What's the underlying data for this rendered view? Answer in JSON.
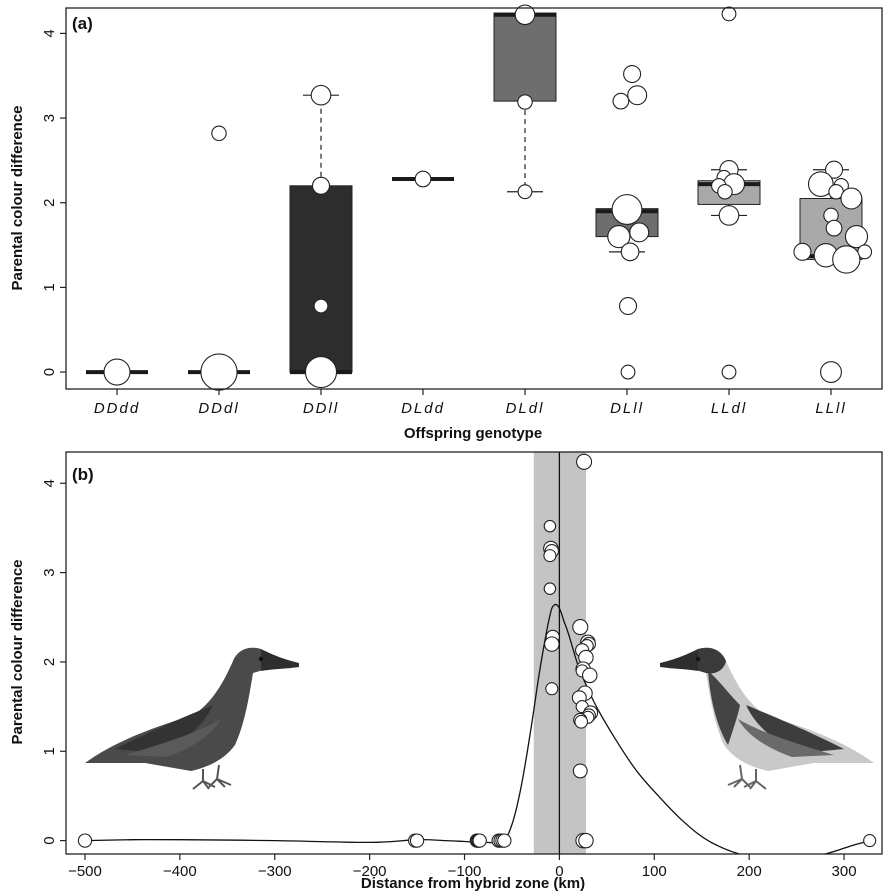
{
  "chart_data": [
    {
      "panel": "(a)",
      "type": "box",
      "xlabel": "Offspring genotype",
      "ylabel": "Parental colour difference",
      "ylim": [
        -0.2,
        4.3
      ],
      "yticks": [
        "0",
        "1",
        "2",
        "3",
        "4"
      ],
      "categories": [
        "DDdd",
        "DDdl",
        "DDll",
        "DLdd",
        "DLdl",
        "DLll",
        "LLdl",
        "LLll"
      ],
      "box_colors": [
        "#2d2d2d",
        "#2d2d2d",
        "#2d2d2d",
        "#2d2d2d",
        "#6e6e6e",
        "#6e6e6e",
        "#a9a9a9",
        "#a9a9a9"
      ],
      "boxes": [
        {
          "q1": 0,
          "median": 0,
          "q3": 0,
          "wlo": 0,
          "whi": 0
        },
        {
          "q1": 0,
          "median": 0,
          "q3": 0,
          "wlo": 0,
          "whi": 0
        },
        {
          "q1": 0,
          "median": 0,
          "q3": 2.2,
          "wlo": 0,
          "whi": 3.27
        },
        {
          "q1": 2.28,
          "median": 2.28,
          "q3": 2.28,
          "wlo": 2.28,
          "whi": 2.28
        },
        {
          "q1": 3.2,
          "median": 4.22,
          "q3": 4.24,
          "wlo": 2.13,
          "whi": 4.24
        },
        {
          "q1": 1.6,
          "median": 1.9,
          "q3": 1.93,
          "wlo": 1.42,
          "whi": 1.93
        },
        {
          "q1": 1.98,
          "median": 2.22,
          "q3": 2.26,
          "wlo": 1.85,
          "whi": 2.39
        },
        {
          "q1": 1.33,
          "median": 1.37,
          "q3": 2.05,
          "wlo": 1.33,
          "whi": 2.39
        }
      ],
      "points": [
        [
          {
            "y": 0,
            "s": 1.4
          }
        ],
        [
          {
            "y": 2.82,
            "s": 0.5
          },
          {
            "y": 0,
            "s": 2.2
          }
        ],
        [
          {
            "y": 3.27,
            "s": 0.9
          },
          {
            "y": 2.2,
            "s": 0.7
          },
          {
            "y": 0.78,
            "s": 0.45
          },
          {
            "y": 0,
            "s": 1.8
          }
        ],
        [
          {
            "y": 2.28,
            "s": 0.6
          }
        ],
        [
          {
            "y": 4.22,
            "s": 0.9
          },
          {
            "y": 3.19,
            "s": 0.5
          },
          {
            "y": 2.13,
            "s": 0.45
          }
        ],
        [
          {
            "y": 3.52,
            "s": 0.7,
            "dx": 0.05
          },
          {
            "y": 3.27,
            "s": 0.85,
            "dx": 0.1
          },
          {
            "y": 3.2,
            "s": 0.6,
            "dx": -0.06
          },
          {
            "y": 1.92,
            "s": 1.7
          },
          {
            "y": 1.65,
            "s": 0.85,
            "dx": 0.12
          },
          {
            "y": 1.6,
            "s": 1.1,
            "dx": -0.08
          },
          {
            "y": 1.42,
            "s": 0.75,
            "dx": 0.03
          },
          {
            "y": 0.78,
            "s": 0.7,
            "dx": 0.01
          },
          {
            "y": 0,
            "s": 0.45,
            "dx": 0.01
          }
        ],
        [
          {
            "y": 4.23,
            "s": 0.45
          },
          {
            "y": 2.39,
            "s": 0.8
          },
          {
            "y": 2.3,
            "s": 0.45,
            "dx": -0.05
          },
          {
            "y": 2.22,
            "s": 1.0,
            "dx": 0.05
          },
          {
            "y": 2.2,
            "s": 0.5,
            "dx": -0.1
          },
          {
            "y": 2.13,
            "s": 0.5,
            "dx": -0.04
          },
          {
            "y": 1.85,
            "s": 0.9
          },
          {
            "y": 0,
            "s": 0.45
          }
        ],
        [
          {
            "y": 2.39,
            "s": 0.7,
            "dx": 0.03
          },
          {
            "y": 2.22,
            "s": 1.3,
            "dx": -0.1
          },
          {
            "y": 2.2,
            "s": 0.5,
            "dx": 0.1
          },
          {
            "y": 2.13,
            "s": 0.5,
            "dx": 0.05
          },
          {
            "y": 2.05,
            "s": 1.0,
            "dx": 0.2
          },
          {
            "y": 1.85,
            "s": 0.5
          },
          {
            "y": 1.7,
            "s": 0.6,
            "dx": 0.03
          },
          {
            "y": 1.6,
            "s": 1.1,
            "dx": 0.25
          },
          {
            "y": 1.42,
            "s": 0.7,
            "dx": -0.28
          },
          {
            "y": 1.42,
            "s": 0.45,
            "dx": 0.33
          },
          {
            "y": 1.38,
            "s": 1.2,
            "dx": -0.05
          },
          {
            "y": 1.33,
            "s": 1.5,
            "dx": 0.15
          },
          {
            "y": 0,
            "s": 1.0
          }
        ]
      ]
    },
    {
      "panel": "(b)",
      "type": "scatter",
      "xlabel": "Distance from hybrid zone (km)",
      "ylabel": "Parental colour difference",
      "xlim": [
        -520,
        340
      ],
      "ylim": [
        -0.15,
        4.35
      ],
      "xticks": [
        "−500",
        "−400",
        "−300",
        "−200",
        "−100",
        "0",
        "100",
        "200",
        "300"
      ],
      "yticks": [
        "0",
        "1",
        "2",
        "3",
        "4"
      ],
      "hybrid_zone_band": [
        -27,
        28
      ],
      "points": [
        {
          "x": -500,
          "y": 0,
          "s": 0.6
        },
        {
          "x": -152,
          "y": 0,
          "s": 0.6
        },
        {
          "x": -150,
          "y": 0,
          "s": 0.6
        },
        {
          "x": -87,
          "y": 0,
          "s": 0.6
        },
        {
          "x": -86,
          "y": 0,
          "s": 0.6
        },
        {
          "x": -85,
          "y": 0,
          "s": 0.6
        },
        {
          "x": -84,
          "y": 0,
          "s": 0.6
        },
        {
          "x": -64,
          "y": 0,
          "s": 0.6
        },
        {
          "x": -62,
          "y": 0,
          "s": 0.6
        },
        {
          "x": -60,
          "y": 0,
          "s": 0.6
        },
        {
          "x": -58,
          "y": 0,
          "s": 0.6
        },
        {
          "x": -10,
          "y": 3.52,
          "s": 0.45
        },
        {
          "x": -9,
          "y": 3.27,
          "s": 0.7
        },
        {
          "x": -8,
          "y": 3.24,
          "s": 0.6
        },
        {
          "x": -10,
          "y": 3.19,
          "s": 0.5
        },
        {
          "x": -10,
          "y": 2.82,
          "s": 0.45
        },
        {
          "x": -7,
          "y": 2.28,
          "s": 0.6
        },
        {
          "x": -8,
          "y": 2.2,
          "s": 0.7
        },
        {
          "x": -8,
          "y": 1.7,
          "s": 0.5
        },
        {
          "x": 26,
          "y": 4.24,
          "s": 0.75
        },
        {
          "x": 22,
          "y": 2.39,
          "s": 0.75
        },
        {
          "x": 30,
          "y": 2.22,
          "s": 0.7
        },
        {
          "x": 31,
          "y": 2.2,
          "s": 0.6
        },
        {
          "x": 29,
          "y": 2.18,
          "s": 0.55
        },
        {
          "x": 24,
          "y": 2.13,
          "s": 0.6
        },
        {
          "x": 28,
          "y": 2.05,
          "s": 0.7
        },
        {
          "x": 25,
          "y": 1.92,
          "s": 0.7
        },
        {
          "x": 24,
          "y": 1.9,
          "s": 0.5
        },
        {
          "x": 32,
          "y": 1.85,
          "s": 0.7
        },
        {
          "x": 27,
          "y": 1.65,
          "s": 0.7
        },
        {
          "x": 21,
          "y": 1.6,
          "s": 0.65
        },
        {
          "x": 24,
          "y": 1.5,
          "s": 0.5
        },
        {
          "x": 33,
          "y": 1.43,
          "s": 0.65
        },
        {
          "x": 31,
          "y": 1.4,
          "s": 0.6
        },
        {
          "x": 30,
          "y": 1.38,
          "s": 0.5
        },
        {
          "x": 22,
          "y": 1.35,
          "s": 0.6
        },
        {
          "x": 23,
          "y": 1.33,
          "s": 0.55
        },
        {
          "x": 22,
          "y": 0.78,
          "s": 0.65
        },
        {
          "x": 25,
          "y": 0,
          "s": 0.7
        },
        {
          "x": 28,
          "y": 0,
          "s": 0.7
        },
        {
          "x": 327,
          "y": 0,
          "s": 0.5
        }
      ],
      "curve": {
        "x": [
          -500,
          -450,
          -400,
          -300,
          -200,
          -150,
          -120,
          -100,
          -80,
          -60,
          -50,
          -40,
          -30,
          -20,
          -10,
          -5,
          0,
          5,
          10,
          20,
          30,
          40,
          60,
          80,
          100,
          130,
          160,
          200,
          240,
          280,
          310,
          328
        ],
        "y": [
          0,
          0.01,
          0.01,
          0.0,
          -0.02,
          0.01,
          0.0,
          -0.01,
          -0.02,
          0.0,
          0.18,
          0.62,
          1.25,
          1.95,
          2.52,
          2.64,
          2.6,
          2.45,
          2.3,
          1.95,
          1.7,
          1.48,
          1.12,
          0.8,
          0.55,
          0.22,
          -0.02,
          -0.18,
          -0.22,
          -0.15,
          -0.05,
          0
        ]
      }
    }
  ]
}
